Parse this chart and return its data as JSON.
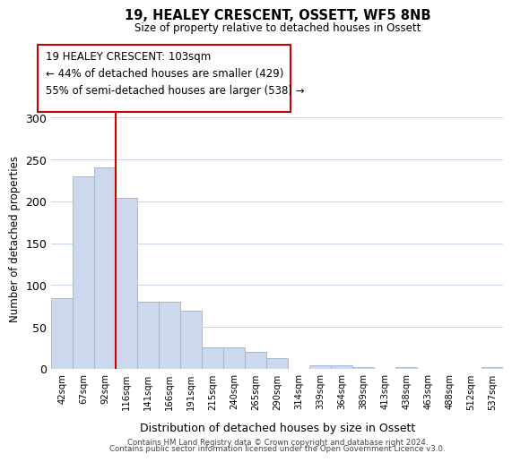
{
  "title": "19, HEALEY CRESCENT, OSSETT, WF5 8NB",
  "subtitle": "Size of property relative to detached houses in Ossett",
  "xlabel": "Distribution of detached houses by size in Ossett",
  "ylabel": "Number of detached properties",
  "bar_labels": [
    "42sqm",
    "67sqm",
    "92sqm",
    "116sqm",
    "141sqm",
    "166sqm",
    "191sqm",
    "215sqm",
    "240sqm",
    "265sqm",
    "290sqm",
    "314sqm",
    "339sqm",
    "364sqm",
    "389sqm",
    "413sqm",
    "438sqm",
    "463sqm",
    "488sqm",
    "512sqm",
    "537sqm"
  ],
  "bar_values": [
    84,
    230,
    240,
    204,
    80,
    80,
    69,
    26,
    26,
    20,
    13,
    0,
    4,
    4,
    2,
    0,
    2,
    0,
    0,
    0,
    2
  ],
  "bar_color": "#ccd9ed",
  "bar_edge_color": "#99b3d4",
  "vline_x_index": 2,
  "vline_color": "#cc0000",
  "annotation_line1": "19 HEALEY CRESCENT: 103sqm",
  "annotation_line2": "← 44% of detached houses are smaller (429)",
  "annotation_line3": "55% of semi-detached houses are larger (538) →",
  "ylim": [
    0,
    310
  ],
  "yticks": [
    0,
    50,
    100,
    150,
    200,
    250,
    300
  ],
  "background_color": "#ffffff",
  "grid_color": "#c8d4e8",
  "footer_line1": "Contains HM Land Registry data © Crown copyright and database right 2024.",
  "footer_line2": "Contains public sector information licensed under the Open Government Licence v3.0."
}
